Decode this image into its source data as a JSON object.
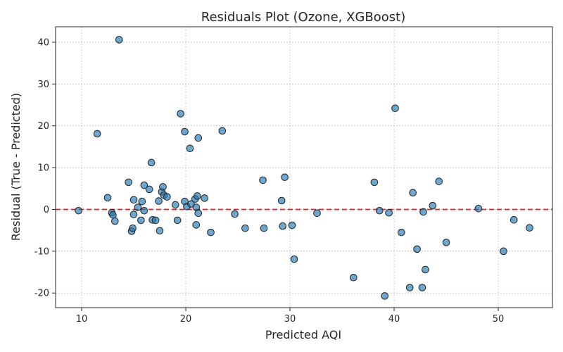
{
  "chart_data": {
    "type": "scatter",
    "title": "Residuals Plot (Ozone, XGBoost)",
    "xlabel": "Predicted AQI",
    "ylabel": "Residual (True - Predicted)",
    "xlim": [
      7.5,
      55.2
    ],
    "ylim": [
      -23.5,
      43.7
    ],
    "xticks": [
      10,
      20,
      30,
      40,
      50
    ],
    "yticks": [
      -20,
      -10,
      0,
      10,
      20,
      30,
      40
    ],
    "grid": true,
    "reference_line": {
      "y": 0,
      "color": "#e31a1c",
      "style": "dashed"
    },
    "point_color": "#1f77b4",
    "point_edge_color": "#222222",
    "points": [
      [
        9.7,
        -0.3
      ],
      [
        11.5,
        18.1
      ],
      [
        12.5,
        2.8
      ],
      [
        12.9,
        -0.8
      ],
      [
        13.0,
        -1.3
      ],
      [
        13.2,
        -2.8
      ],
      [
        13.6,
        40.6
      ],
      [
        14.5,
        6.5
      ],
      [
        14.8,
        -5.2
      ],
      [
        14.9,
        -4.5
      ],
      [
        15.0,
        2.3
      ],
      [
        15.0,
        -1.2
      ],
      [
        15.4,
        0.5
      ],
      [
        15.7,
        -2.6
      ],
      [
        15.8,
        1.9
      ],
      [
        16.0,
        -0.3
      ],
      [
        16.0,
        5.8
      ],
      [
        16.5,
        4.8
      ],
      [
        16.7,
        11.2
      ],
      [
        16.8,
        -2.5
      ],
      [
        17.1,
        -2.6
      ],
      [
        17.4,
        2.0
      ],
      [
        17.5,
        -5.1
      ],
      [
        17.7,
        4.2
      ],
      [
        17.8,
        5.4
      ],
      [
        17.9,
        3.4
      ],
      [
        18.2,
        3.0
      ],
      [
        19.0,
        1.1
      ],
      [
        19.2,
        -2.6
      ],
      [
        19.5,
        22.9
      ],
      [
        19.9,
        18.6
      ],
      [
        19.9,
        1.9
      ],
      [
        20.1,
        0.7
      ],
      [
        20.4,
        14.6
      ],
      [
        20.5,
        1.3
      ],
      [
        20.9,
        2.5
      ],
      [
        21.0,
        0.5
      ],
      [
        21.0,
        -3.7
      ],
      [
        21.1,
        3.2
      ],
      [
        21.2,
        17.1
      ],
      [
        21.2,
        -0.9
      ],
      [
        21.8,
        2.7
      ],
      [
        22.4,
        -5.5
      ],
      [
        23.5,
        18.8
      ],
      [
        24.7,
        -1.1
      ],
      [
        25.7,
        -4.5
      ],
      [
        27.4,
        7.0
      ],
      [
        27.5,
        -4.5
      ],
      [
        29.2,
        2.1
      ],
      [
        29.3,
        -4.0
      ],
      [
        29.5,
        7.7
      ],
      [
        30.2,
        -3.8
      ],
      [
        30.4,
        -11.9
      ],
      [
        32.6,
        -0.9
      ],
      [
        36.1,
        -16.3
      ],
      [
        38.1,
        6.5
      ],
      [
        38.6,
        -0.3
      ],
      [
        39.1,
        -20.7
      ],
      [
        39.5,
        -0.8
      ],
      [
        40.1,
        24.2
      ],
      [
        40.7,
        -5.5
      ],
      [
        41.5,
        -18.7
      ],
      [
        41.8,
        4.0
      ],
      [
        42.2,
        -9.5
      ],
      [
        42.7,
        -18.7
      ],
      [
        42.8,
        -0.6
      ],
      [
        43.0,
        -14.4
      ],
      [
        43.7,
        0.9
      ],
      [
        44.3,
        6.7
      ],
      [
        45.0,
        -7.9
      ],
      [
        48.1,
        0.2
      ],
      [
        50.5,
        -10.0
      ],
      [
        51.5,
        -2.5
      ],
      [
        53.0,
        -4.4
      ]
    ]
  }
}
